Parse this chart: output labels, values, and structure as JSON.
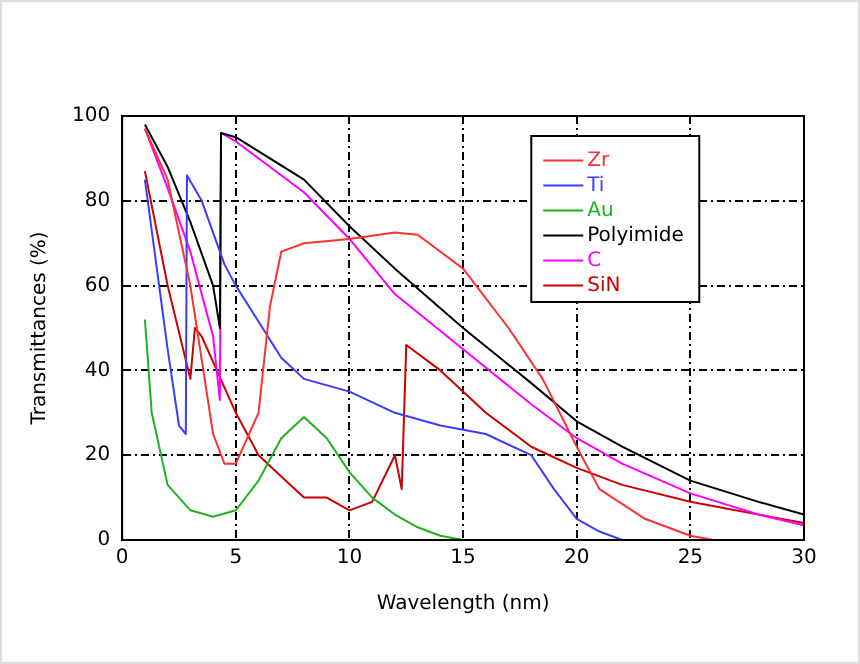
{
  "chart_data": {
    "type": "line",
    "xlabel": "Wavelength (nm)",
    "ylabel": "Transmittances (%)",
    "xlim": [
      0,
      30
    ],
    "xticks": [
      0,
      5,
      10,
      15,
      20,
      25,
      30
    ],
    "ylim": [
      0,
      100
    ],
    "yticks": [
      0,
      20,
      40,
      60,
      80,
      100
    ],
    "grid": true,
    "legend": "top right",
    "marker": "none",
    "line_style": "solid",
    "series": [
      {
        "name": "Zr",
        "color": "#ff3030",
        "x": [
          1,
          2,
          3,
          4,
          4.5,
          5,
          6,
          6.5,
          7,
          8,
          10,
          12,
          13,
          15,
          17,
          18.5,
          20,
          21,
          23,
          25,
          26
        ],
        "values": [
          97,
          85,
          60,
          25,
          18,
          18,
          30,
          55,
          68,
          70,
          71,
          72.5,
          72,
          64,
          50,
          38,
          22,
          12,
          5,
          1,
          0
        ]
      },
      {
        "name": "Ti",
        "color": "#3c3cff",
        "x": [
          1,
          1.5,
          2,
          2.5,
          2.8,
          2.85,
          3.5,
          4.5,
          5,
          7,
          8,
          10,
          12,
          14,
          15,
          16,
          18,
          19,
          20,
          21,
          22
        ],
        "values": [
          85,
          65,
          45,
          27,
          25,
          86,
          80,
          65,
          60,
          43,
          38,
          35,
          30,
          27,
          26,
          25,
          20,
          12,
          5,
          2,
          0
        ]
      },
      {
        "name": "Au",
        "color": "#20b020",
        "x": [
          1,
          1.3,
          2,
          3,
          4,
          5,
          6,
          7,
          8,
          9,
          10,
          11,
          12,
          13,
          14,
          15
        ],
        "values": [
          52,
          30,
          13,
          7,
          5.5,
          7,
          14,
          24,
          29,
          24,
          16,
          10,
          6,
          3,
          1,
          0
        ]
      },
      {
        "name": "Polyimide",
        "color": "#000000",
        "x": [
          1,
          2,
          3,
          4,
          4.3,
          4.35,
          5,
          8,
          10,
          12,
          15,
          18,
          20,
          22,
          25,
          28,
          30
        ],
        "values": [
          98,
          88,
          75,
          60,
          50,
          96,
          95,
          85,
          74,
          64,
          50,
          37,
          28,
          22,
          14,
          9,
          6
        ]
      },
      {
        "name": "C",
        "color": "#ff00ff",
        "x": [
          1,
          2,
          3,
          4,
          4.3,
          4.35,
          5,
          8,
          10,
          12,
          15,
          18,
          20,
          22,
          25,
          28,
          30
        ],
        "values": [
          97,
          83,
          68,
          48,
          33,
          96,
          94,
          82,
          71,
          58,
          45,
          32,
          24,
          18,
          11,
          6,
          3.5
        ]
      },
      {
        "name": "SiN",
        "color": "#cc0000",
        "x": [
          1,
          2,
          3,
          3.2,
          3.5,
          5,
          6,
          7,
          8,
          9,
          10,
          11,
          12,
          12.3,
          12.5,
          14,
          16,
          18,
          20,
          22,
          25,
          30
        ],
        "values": [
          87,
          60,
          38,
          50,
          48,
          30,
          20,
          15,
          10,
          10,
          7,
          9,
          20,
          12,
          46,
          40,
          30,
          22,
          17,
          13,
          9,
          4
        ]
      }
    ]
  }
}
